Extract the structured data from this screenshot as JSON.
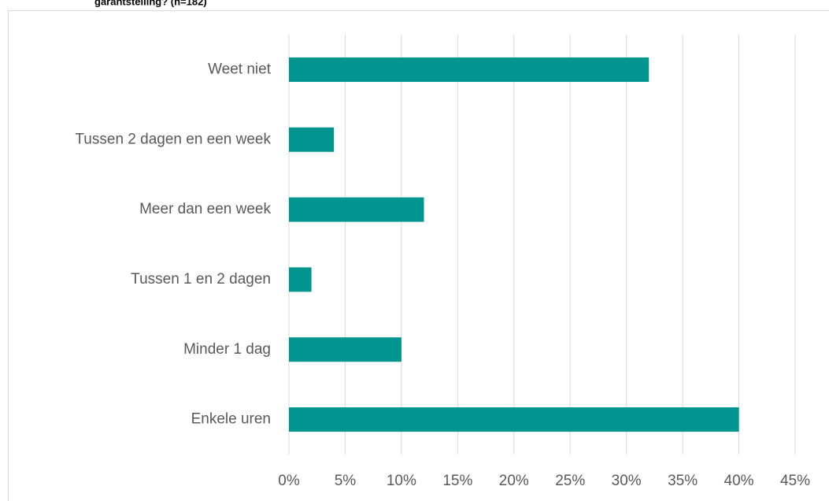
{
  "chart_data": {
    "type": "bar",
    "orientation": "horizontal",
    "title": "garantstelling? (n=182)",
    "categories": [
      "Weet niet",
      "Tussen 2 dagen en een week",
      "Meer dan een week",
      "Tussen 1 en 2 dagen",
      "Minder 1 dag",
      "Enkele uren"
    ],
    "values": [
      32,
      4,
      12,
      2,
      10,
      40
    ],
    "color": "#00968f",
    "xlim": [
      0,
      45
    ],
    "xticks": [
      {
        "value": 0,
        "label": "0%"
      },
      {
        "value": 5,
        "label": "5%"
      },
      {
        "value": 10,
        "label": "10%"
      },
      {
        "value": 15,
        "label": "15%"
      },
      {
        "value": 20,
        "label": "20%"
      },
      {
        "value": 25,
        "label": "25%"
      },
      {
        "value": 30,
        "label": "30%"
      },
      {
        "value": 35,
        "label": "35%"
      },
      {
        "value": 40,
        "label": "40%"
      },
      {
        "value": 45,
        "label": "45%"
      }
    ],
    "grid": true
  }
}
